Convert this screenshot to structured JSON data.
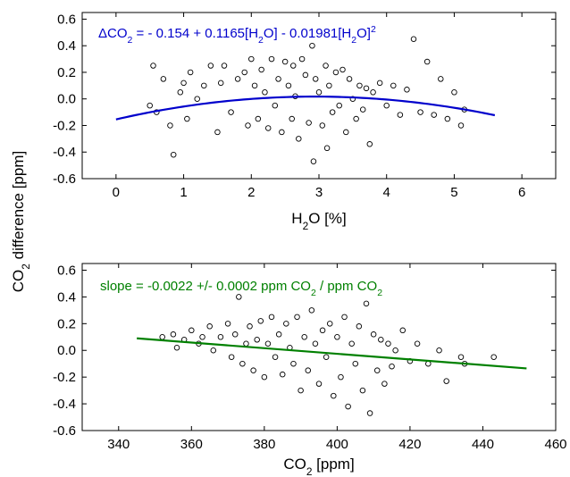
{
  "shared_ylabel": {
    "main": "CO",
    "sub": "2",
    "rest": " difference [ppm]"
  },
  "chart_data": [
    {
      "id": "top",
      "type": "scatter",
      "title": "",
      "xlabel": {
        "main": "H",
        "sub": "2",
        "rest": "O [%]"
      },
      "ylabel": "CO2 difference [ppm]",
      "xlim": [
        -0.5,
        6.5
      ],
      "ylim": [
        -0.6,
        0.65
      ],
      "xticks": [
        0,
        1,
        2,
        3,
        4,
        5,
        6
      ],
      "yticks": [
        -0.6,
        -0.4,
        -0.2,
        0.0,
        0.2,
        0.4,
        0.6
      ],
      "grid": false,
      "fit": {
        "kind": "quadratic",
        "color": "#0000cc",
        "a": -0.154,
        "b": 0.1165,
        "c": -0.01981,
        "x_range": [
          0.0,
          5.6
        ]
      },
      "annotation": {
        "color": "#0000cc",
        "parts": [
          {
            "t": "ΔCO",
            "s": "n"
          },
          {
            "t": "2",
            "s": "sub"
          },
          {
            "t": " = - 0.154 + 0.1165[H",
            "s": "n"
          },
          {
            "t": "2",
            "s": "sub"
          },
          {
            "t": "O] - 0.01981[H",
            "s": "n"
          },
          {
            "t": "2",
            "s": "sub"
          },
          {
            "t": "O]",
            "s": "n"
          },
          {
            "t": "2",
            "s": "sup"
          }
        ]
      },
      "points": [
        [
          0.5,
          -0.05
        ],
        [
          0.55,
          0.25
        ],
        [
          0.6,
          -0.1
        ],
        [
          0.7,
          0.15
        ],
        [
          0.8,
          -0.2
        ],
        [
          0.85,
          -0.42
        ],
        [
          0.95,
          0.05
        ],
        [
          1.0,
          0.12
        ],
        [
          1.05,
          -0.15
        ],
        [
          1.1,
          0.2
        ],
        [
          1.2,
          0.0
        ],
        [
          1.3,
          0.1
        ],
        [
          1.4,
          0.25
        ],
        [
          1.5,
          -0.25
        ],
        [
          1.55,
          0.12
        ],
        [
          1.6,
          0.25
        ],
        [
          1.7,
          -0.1
        ],
        [
          1.8,
          0.15
        ],
        [
          1.9,
          0.2
        ],
        [
          1.95,
          -0.2
        ],
        [
          2.0,
          0.3
        ],
        [
          2.05,
          0.1
        ],
        [
          2.1,
          -0.15
        ],
        [
          2.15,
          0.22
        ],
        [
          2.2,
          0.05
        ],
        [
          2.25,
          -0.22
        ],
        [
          2.3,
          0.3
        ],
        [
          2.35,
          -0.05
        ],
        [
          2.4,
          0.15
        ],
        [
          2.45,
          -0.25
        ],
        [
          2.5,
          0.28
        ],
        [
          2.55,
          0.1
        ],
        [
          2.6,
          -0.15
        ],
        [
          2.62,
          0.25
        ],
        [
          2.65,
          0.02
        ],
        [
          2.7,
          -0.3
        ],
        [
          2.75,
          0.3
        ],
        [
          2.8,
          0.18
        ],
        [
          2.85,
          -0.18
        ],
        [
          2.9,
          0.4
        ],
        [
          2.92,
          -0.47
        ],
        [
          2.95,
          0.15
        ],
        [
          3.0,
          0.05
        ],
        [
          3.05,
          -0.2
        ],
        [
          3.1,
          0.25
        ],
        [
          3.12,
          -0.37
        ],
        [
          3.15,
          0.1
        ],
        [
          3.2,
          -0.1
        ],
        [
          3.25,
          0.2
        ],
        [
          3.3,
          -0.05
        ],
        [
          3.35,
          0.22
        ],
        [
          3.4,
          -0.25
        ],
        [
          3.45,
          0.15
        ],
        [
          3.5,
          0.0
        ],
        [
          3.55,
          -0.15
        ],
        [
          3.6,
          0.1
        ],
        [
          3.65,
          -0.08
        ],
        [
          3.7,
          0.08
        ],
        [
          3.75,
          -0.34
        ],
        [
          3.8,
          0.05
        ],
        [
          3.9,
          0.12
        ],
        [
          4.0,
          -0.05
        ],
        [
          4.1,
          0.1
        ],
        [
          4.2,
          -0.12
        ],
        [
          4.3,
          0.07
        ],
        [
          4.4,
          0.45
        ],
        [
          4.5,
          -0.1
        ],
        [
          4.6,
          0.28
        ],
        [
          4.7,
          -0.12
        ],
        [
          4.8,
          0.15
        ],
        [
          4.9,
          -0.15
        ],
        [
          5.0,
          0.05
        ],
        [
          5.1,
          -0.2
        ],
        [
          5.15,
          -0.08
        ]
      ]
    },
    {
      "id": "bottom",
      "type": "scatter",
      "title": "",
      "xlabel": {
        "main": "CO",
        "sub": "2",
        "rest": " [ppm]"
      },
      "ylabel": "CO2 difference [ppm]",
      "xlim": [
        330,
        460
      ],
      "ylim": [
        -0.6,
        0.65
      ],
      "xticks": [
        340,
        360,
        380,
        400,
        420,
        440,
        460
      ],
      "yticks": [
        -0.6,
        -0.4,
        -0.2,
        0.0,
        0.2,
        0.4,
        0.6
      ],
      "grid": false,
      "fit": {
        "kind": "linear",
        "color": "#008000",
        "x_range": [
          345,
          452
        ],
        "y_range": [
          0.09,
          -0.135
        ]
      },
      "annotation": {
        "color": "#008000",
        "parts": [
          {
            "t": "slope = -0.0022 +/- 0.0002 ppm CO",
            "s": "n"
          },
          {
            "t": "2",
            "s": "sub"
          },
          {
            "t": " / ppm CO",
            "s": "n"
          },
          {
            "t": "2",
            "s": "sub"
          }
        ]
      },
      "points": [
        [
          352,
          0.1
        ],
        [
          355,
          0.12
        ],
        [
          356,
          0.02
        ],
        [
          358,
          0.08
        ],
        [
          360,
          0.15
        ],
        [
          362,
          0.05
        ],
        [
          363,
          0.1
        ],
        [
          365,
          0.18
        ],
        [
          366,
          0.0
        ],
        [
          368,
          0.1
        ],
        [
          370,
          0.2
        ],
        [
          371,
          -0.05
        ],
        [
          372,
          0.12
        ],
        [
          373,
          0.4
        ],
        [
          374,
          -0.1
        ],
        [
          375,
          0.05
        ],
        [
          376,
          0.18
        ],
        [
          377,
          -0.15
        ],
        [
          378,
          0.08
        ],
        [
          379,
          0.22
        ],
        [
          380,
          -0.2
        ],
        [
          381,
          0.05
        ],
        [
          382,
          0.25
        ],
        [
          383,
          -0.05
        ],
        [
          384,
          0.12
        ],
        [
          385,
          -0.18
        ],
        [
          386,
          0.2
        ],
        [
          387,
          0.02
        ],
        [
          388,
          -0.1
        ],
        [
          389,
          0.25
        ],
        [
          390,
          -0.3
        ],
        [
          391,
          0.1
        ],
        [
          392,
          -0.15
        ],
        [
          393,
          0.3
        ],
        [
          394,
          0.05
        ],
        [
          395,
          -0.25
        ],
        [
          396,
          0.15
        ],
        [
          397,
          -0.05
        ],
        [
          398,
          0.2
        ],
        [
          399,
          -0.34
        ],
        [
          400,
          0.1
        ],
        [
          401,
          -0.2
        ],
        [
          402,
          0.25
        ],
        [
          403,
          -0.42
        ],
        [
          404,
          0.05
        ],
        [
          405,
          -0.1
        ],
        [
          406,
          0.18
        ],
        [
          407,
          -0.3
        ],
        [
          408,
          0.35
        ],
        [
          409,
          -0.47
        ],
        [
          410,
          0.12
        ],
        [
          411,
          -0.15
        ],
        [
          412,
          0.08
        ],
        [
          413,
          -0.25
        ],
        [
          414,
          0.05
        ],
        [
          415,
          -0.12
        ],
        [
          416,
          0.0
        ],
        [
          418,
          0.15
        ],
        [
          420,
          -0.08
        ],
        [
          422,
          0.05
        ],
        [
          425,
          -0.1
        ],
        [
          428,
          0.0
        ],
        [
          430,
          -0.23
        ],
        [
          434,
          -0.05
        ],
        [
          435,
          -0.1
        ],
        [
          443,
          -0.05
        ]
      ]
    }
  ]
}
